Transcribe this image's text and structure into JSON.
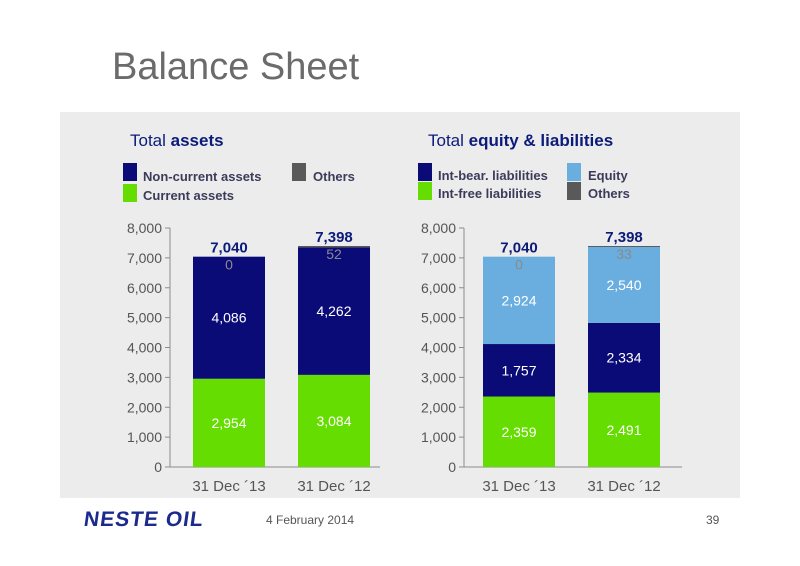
{
  "page": {
    "title": "Balance Sheet",
    "footer": {
      "logo_text": "NESTE OIL",
      "date": "4 February 2014",
      "page_number": "39"
    }
  },
  "colors": {
    "non_current_assets": "#0b0b78",
    "current_assets": "#66dd00",
    "others": "#595959",
    "int_bear_liabilities": "#0b0b78",
    "int_free_liabilities": "#66dd00",
    "equity": "#6aaee0"
  },
  "chart_data": [
    {
      "type": "bar",
      "stacked": true,
      "title_prefix": "Total ",
      "title_bold": "assets",
      "categories": [
        "31 Dec ´13",
        "31 Dec ´12"
      ],
      "ylim": [
        0,
        8000
      ],
      "yticks": [
        "0",
        "1,000",
        "2,000",
        "3,000",
        "4,000",
        "5,000",
        "6,000",
        "7,000",
        "8,000"
      ],
      "series": [
        {
          "name": "Current assets",
          "values": [
            2954,
            3084
          ],
          "labels": [
            "2,954",
            "3,084"
          ],
          "color": "#66dd00"
        },
        {
          "name": "Non-current assets",
          "values": [
            4086,
            4262
          ],
          "labels": [
            "4,086",
            "4,262"
          ],
          "color": "#0b0b78"
        },
        {
          "name": "Others",
          "values": [
            0,
            52
          ],
          "labels": [
            "0",
            "52"
          ],
          "color": "#595959"
        }
      ],
      "totals": [
        "7,040",
        "7,398"
      ],
      "total_values": [
        7040,
        7398
      ],
      "legend": [
        {
          "label": "Non-current assets",
          "color": "#0b0b78"
        },
        {
          "label": "Others",
          "color": "#595959"
        },
        {
          "label": "Current assets",
          "color": "#66dd00"
        }
      ],
      "legend_position": "top",
      "grid": false
    },
    {
      "type": "bar",
      "stacked": true,
      "title_prefix": "Total ",
      "title_bold": "equity & liabilities",
      "categories": [
        "31 Dec ´13",
        "31 Dec ´12"
      ],
      "ylim": [
        0,
        8000
      ],
      "yticks": [
        "0",
        "1,000",
        "2,000",
        "3,000",
        "4,000",
        "5,000",
        "6,000",
        "7,000",
        "8,000"
      ],
      "series": [
        {
          "name": "Int-free liabilities",
          "values": [
            2359,
            2491
          ],
          "labels": [
            "2,359",
            "2,491"
          ],
          "color": "#66dd00"
        },
        {
          "name": "Int-bear. liabilities",
          "values": [
            1757,
            2334
          ],
          "labels": [
            "1,757",
            "2,334"
          ],
          "color": "#0b0b78"
        },
        {
          "name": "Equity",
          "values": [
            2924,
            2540
          ],
          "labels": [
            "2,924",
            "2,540"
          ],
          "color": "#6aaee0"
        },
        {
          "name": "Others",
          "values": [
            0,
            33
          ],
          "labels": [
            "0",
            "33"
          ],
          "color": "#595959"
        }
      ],
      "totals": [
        "7,040",
        "7,398"
      ],
      "total_values": [
        7040,
        7398
      ],
      "legend": [
        {
          "label": "Int-bear. liabilities",
          "color": "#0b0b78"
        },
        {
          "label": "Equity",
          "color": "#6aaee0"
        },
        {
          "label": "Int-free liabilities",
          "color": "#66dd00"
        },
        {
          "label": "Others",
          "color": "#595959"
        }
      ],
      "legend_position": "top",
      "grid": false
    }
  ]
}
